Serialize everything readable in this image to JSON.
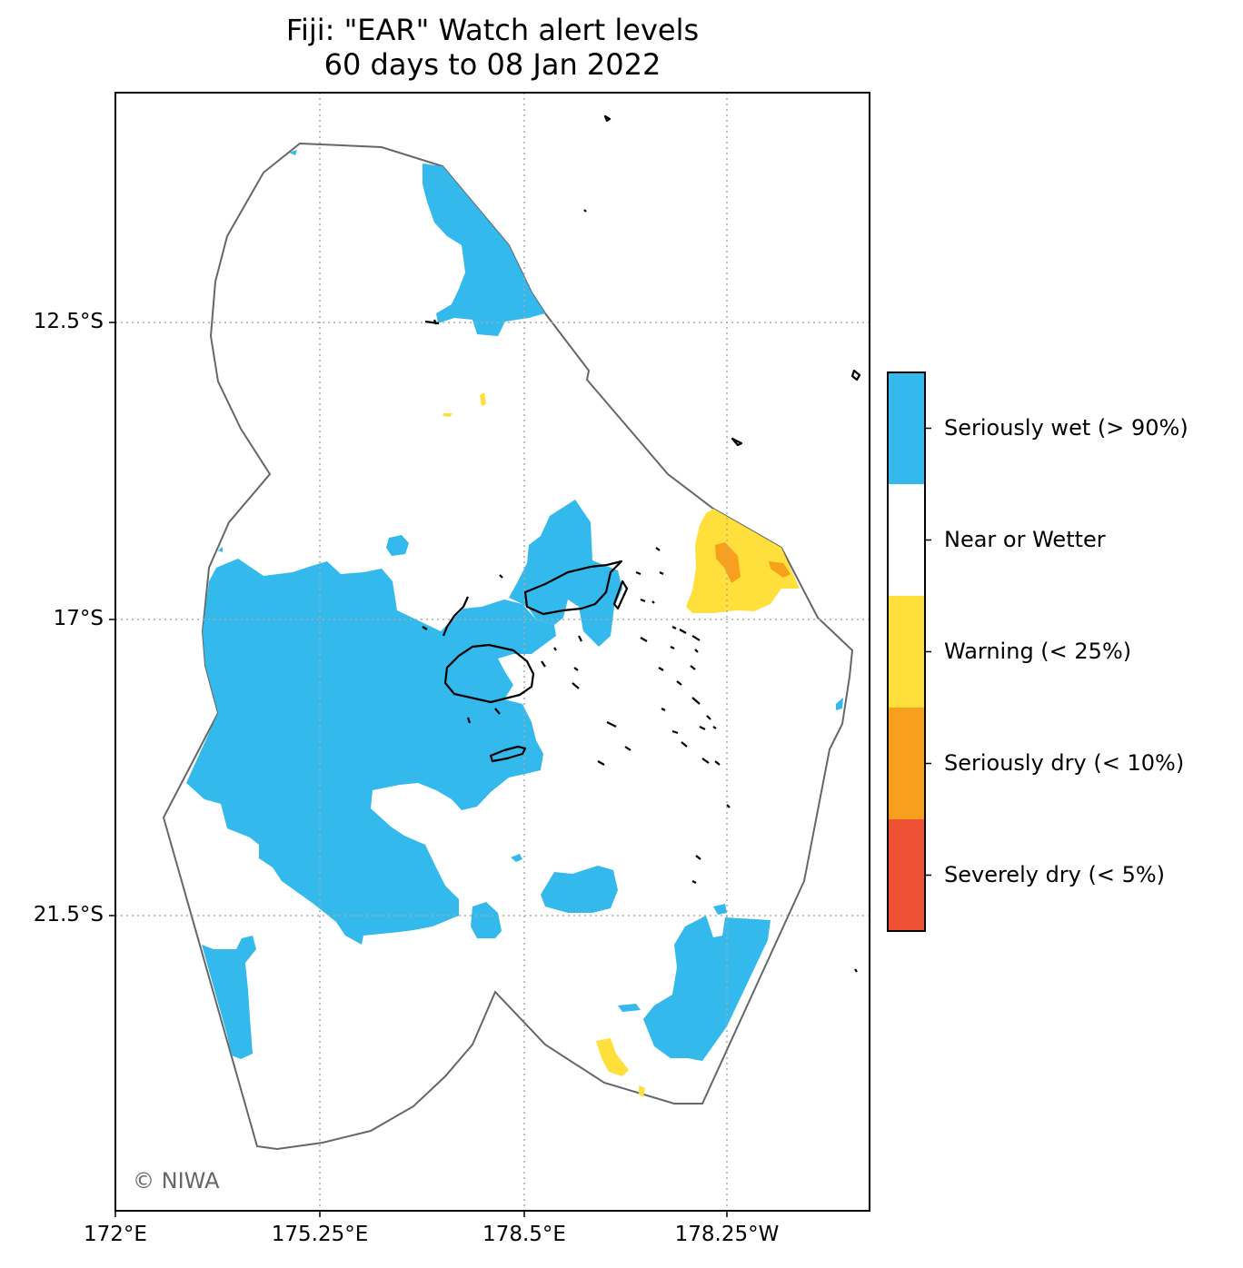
{
  "title": {
    "line1": "Fiji: \"EAR\" Watch alert levels",
    "line2": "60 days to 08 Jan 2022"
  },
  "credit": "© NIWA",
  "axes": {
    "lat_labels": [
      "12.5°S",
      "17°S",
      "21.5°S"
    ],
    "lon_labels": [
      "172°E",
      "175.25°E",
      "178.5°E",
      "178.25°W"
    ]
  },
  "legend": {
    "items": [
      {
        "label": "Seriously wet (> 90%)",
        "color": "#33b9eb"
      },
      {
        "label": "Near or Wetter",
        "color": "#ffffff"
      },
      {
        "label": "Warning (< 25%)",
        "color": "#ffdf3c"
      },
      {
        "label": "Seriously dry (< 10%)",
        "color": "#f8a01d"
      },
      {
        "label": "Severely dry (< 5%)",
        "color": "#ef5134"
      }
    ]
  },
  "colors": {
    "eez_outline": "#666666",
    "grid": "#aaaaaa",
    "coastline": "#000000"
  }
}
